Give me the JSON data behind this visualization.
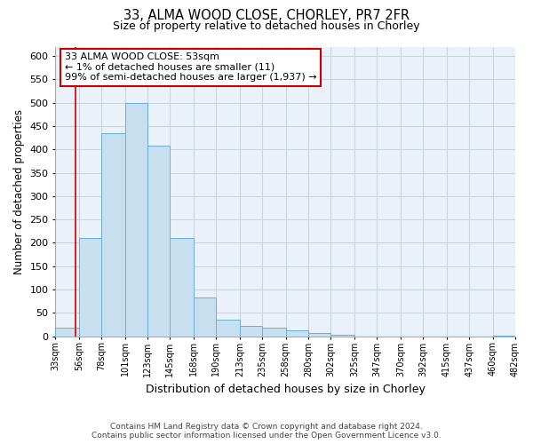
{
  "title": "33, ALMA WOOD CLOSE, CHORLEY, PR7 2FR",
  "subtitle": "Size of property relative to detached houses in Chorley",
  "xlabel": "Distribution of detached houses by size in Chorley",
  "ylabel": "Number of detached properties",
  "bin_edges": [
    33,
    56,
    78,
    101,
    123,
    145,
    168,
    190,
    213,
    235,
    258,
    280,
    302,
    325,
    347,
    370,
    392,
    415,
    437,
    460,
    482
  ],
  "bin_labels": [
    "33sqm",
    "56sqm",
    "78sqm",
    "101sqm",
    "123sqm",
    "145sqm",
    "168sqm",
    "190sqm",
    "213sqm",
    "235sqm",
    "258sqm",
    "280sqm",
    "302sqm",
    "325sqm",
    "347sqm",
    "370sqm",
    "392sqm",
    "415sqm",
    "437sqm",
    "460sqm",
    "482sqm"
  ],
  "counts": [
    18,
    210,
    435,
    500,
    408,
    210,
    83,
    35,
    22,
    18,
    12,
    7,
    3,
    0,
    0,
    0,
    0,
    0,
    0,
    2
  ],
  "bar_color": "#c8dff0",
  "bar_edge_color": "#6baed6",
  "property_line_x": 53,
  "property_line_color": "#cc0000",
  "ylim": [
    0,
    620
  ],
  "yticks": [
    0,
    50,
    100,
    150,
    200,
    250,
    300,
    350,
    400,
    450,
    500,
    550,
    600
  ],
  "annotation_title": "33 ALMA WOOD CLOSE: 53sqm",
  "annotation_line1": "← 1% of detached houses are smaller (11)",
  "annotation_line2": "99% of semi-detached houses are larger (1,937) →",
  "annotation_box_color": "#ffffff",
  "annotation_box_edge": "#cc0000",
  "footer_line1": "Contains HM Land Registry data © Crown copyright and database right 2024.",
  "footer_line2": "Contains public sector information licensed under the Open Government Licence v3.0.",
  "background_color": "#ffffff",
  "plot_bg_color": "#eaf1f8",
  "grid_color": "#c8d4e0"
}
